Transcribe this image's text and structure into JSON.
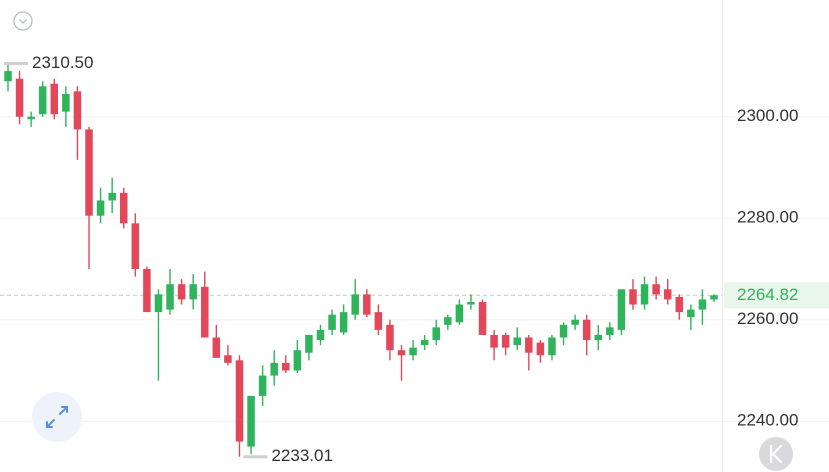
{
  "chart_data": {
    "type": "candlestick",
    "open": [
      2307,
      2307.5,
      2299.5,
      2300.5,
      2306.5,
      2301,
      2305,
      2297.5,
      2280.5,
      2283.5,
      2285,
      2279,
      2270,
      2261.5,
      2262,
      2267,
      2264,
      2266.5,
      2256.5,
      2253,
      2252,
      2235,
      2245,
      2249,
      2251.5,
      2250,
      2253.5,
      2256,
      2258,
      2257.5,
      2261,
      2265,
      2261.5,
      2259,
      2254,
      2253,
      2255,
      2256,
      2259,
      2259.5,
      2263,
      2263.5,
      2257,
      2257,
      2255,
      2256.5,
      2255.5,
      2253,
      2256.5,
      2259,
      2260,
      2256,
      2257,
      2258,
      2266,
      2263,
      2267,
      2266,
      2264.5,
      2260.5,
      2262,
      2264
    ],
    "high": [
      2310.5,
      2309,
      2301,
      2307,
      2307.5,
      2306,
      2306,
      2298,
      2286,
      2288,
      2286,
      2281,
      2270.5,
      2266,
      2270,
      2268,
      2269,
      2269.5,
      2259,
      2255,
      2253,
      2245,
      2251,
      2254,
      2253,
      2256,
      2257,
      2259,
      2262,
      2263,
      2268,
      2266,
      2263,
      2260,
      2255,
      2256,
      2257,
      2260,
      2261,
      2264,
      2265,
      2264,
      2258,
      2257.5,
      2258.5,
      2257,
      2256,
      2257,
      2259.5,
      2261,
      2261,
      2259,
      2259.5,
      2266,
      2268,
      2268.5,
      2268.5,
      2268,
      2265,
      2263,
      2266,
      2265
    ],
    "low": [
      2305,
      2298.5,
      2298,
      2300,
      2299.5,
      2298,
      2291.5,
      2270,
      2279,
      2281,
      2278,
      2268.5,
      2261.5,
      2248,
      2261,
      2263,
      2262,
      2256.5,
      2252.5,
      2251,
      2233.01,
      2233.5,
      2243,
      2247,
      2249.5,
      2249.5,
      2252,
      2255,
      2257,
      2257,
      2260,
      2260.5,
      2257,
      2252,
      2248,
      2252,
      2254,
      2255,
      2258,
      2259,
      2262,
      2257,
      2252,
      2253,
      2254,
      2250,
      2251.5,
      2252,
      2255,
      2258,
      2253,
      2254,
      2256,
      2257,
      2262,
      2262,
      2264,
      2263,
      2260,
      2258,
      2259,
      2263.5
    ],
    "close": [
      2309,
      2300,
      2300,
      2306,
      2300.5,
      2304.5,
      2297.5,
      2280.5,
      2283.5,
      2285,
      2279,
      2270,
      2261.5,
      2265,
      2267,
      2264,
      2267,
      2256.5,
      2252.5,
      2251.5,
      2236,
      2245,
      2249,
      2251.5,
      2250,
      2254,
      2257,
      2258,
      2261,
      2261.5,
      2265,
      2261,
      2258,
      2254,
      2253,
      2254.5,
      2256,
      2258.5,
      2260.5,
      2263,
      2263.5,
      2257,
      2254.5,
      2254.5,
      2256.5,
      2253.5,
      2253,
      2256.5,
      2259,
      2260,
      2256,
      2257,
      2258.5,
      2266,
      2263,
      2267,
      2265,
      2264,
      2261.5,
      2262,
      2264,
      2264.82
    ],
    "up_color": "#2fb45c",
    "down_color": "#e2475a",
    "ylim": [
      2230,
      2323
    ],
    "yticks": [
      {
        "value": 2240,
        "label": "2240.00"
      },
      {
        "value": 2260,
        "label": "2260.00"
      },
      {
        "value": 2280,
        "label": "2280.00"
      },
      {
        "value": 2300,
        "label": "2300.00"
      }
    ],
    "grid": true,
    "last_price": {
      "value": 2264.82,
      "label": "2264.82"
    },
    "high_marker": {
      "value": 2310.5,
      "label": "2310.50"
    },
    "low_marker": {
      "value": 2233.01,
      "label": "2233.01"
    }
  }
}
